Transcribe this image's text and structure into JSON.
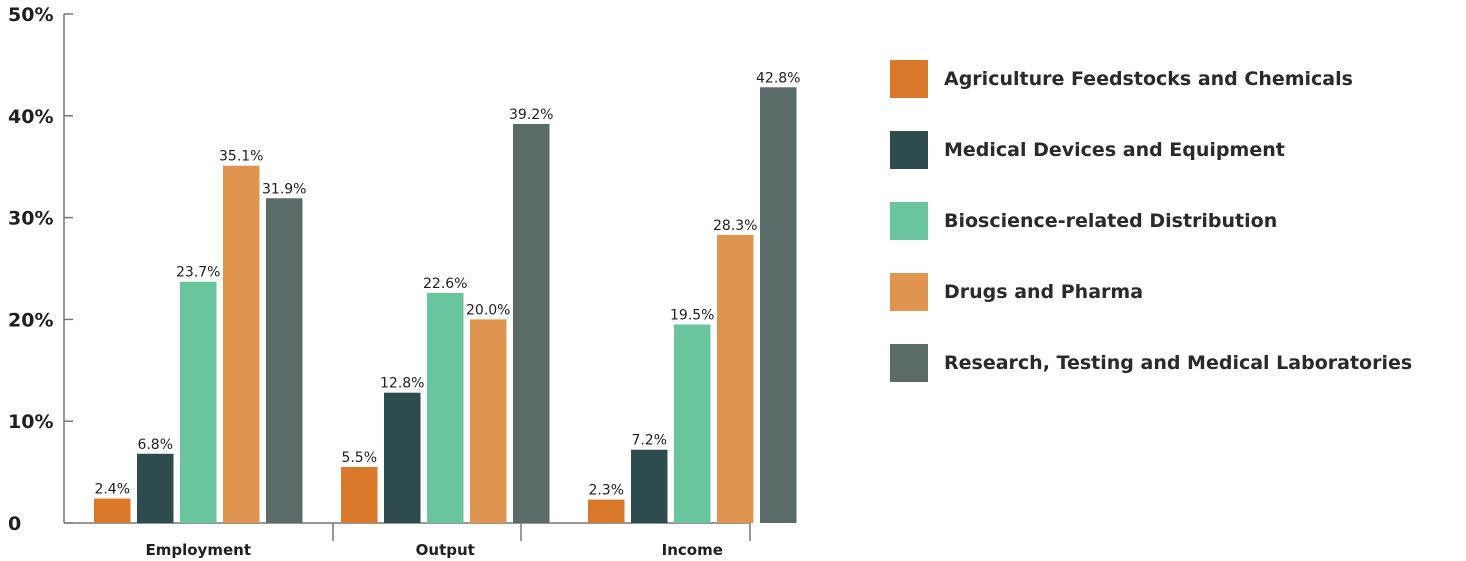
{
  "chart_data": {
    "type": "bar",
    "categories": [
      "Employment",
      "Output",
      "Income"
    ],
    "series": [
      {
        "name": "Agriculture Feedstocks and Chemicals",
        "color": "#D9772A",
        "values": [
          2.4,
          5.5,
          2.3
        ],
        "labels": [
          "2.4%",
          "5.5%",
          "2.3%"
        ]
      },
      {
        "name": "Medical Devices and Equipment",
        "color": "#2E4B50",
        "values": [
          6.8,
          12.8,
          7.2
        ],
        "labels": [
          "6.8%",
          "12.8%",
          "7.2%"
        ]
      },
      {
        "name": "Bioscience-related Distribution",
        "color": "#68C59E",
        "values": [
          23.7,
          22.6,
          19.5
        ],
        "labels": [
          "23.7%",
          "22.6%",
          "19.5%"
        ]
      },
      {
        "name": "Drugs and Pharma",
        "color": "#DF944F",
        "values": [
          35.1,
          20.0,
          28.3
        ],
        "labels": [
          "35.1%",
          "20.0%",
          "28.3%"
        ]
      },
      {
        "name": "Research, Testing and Medical Laboratories",
        "color": "#5A6B69",
        "values": [
          31.9,
          39.2,
          42.8
        ],
        "labels": [
          "31.9%",
          "39.2%",
          "42.8%"
        ]
      }
    ],
    "ylim": [
      0,
      50
    ],
    "yticks": [
      0,
      10,
      20,
      30,
      40,
      50
    ],
    "ytick_labels": [
      "0",
      "10%",
      "20%",
      "30%",
      "40%",
      "50%"
    ],
    "grid": false,
    "legend_position": "right"
  }
}
